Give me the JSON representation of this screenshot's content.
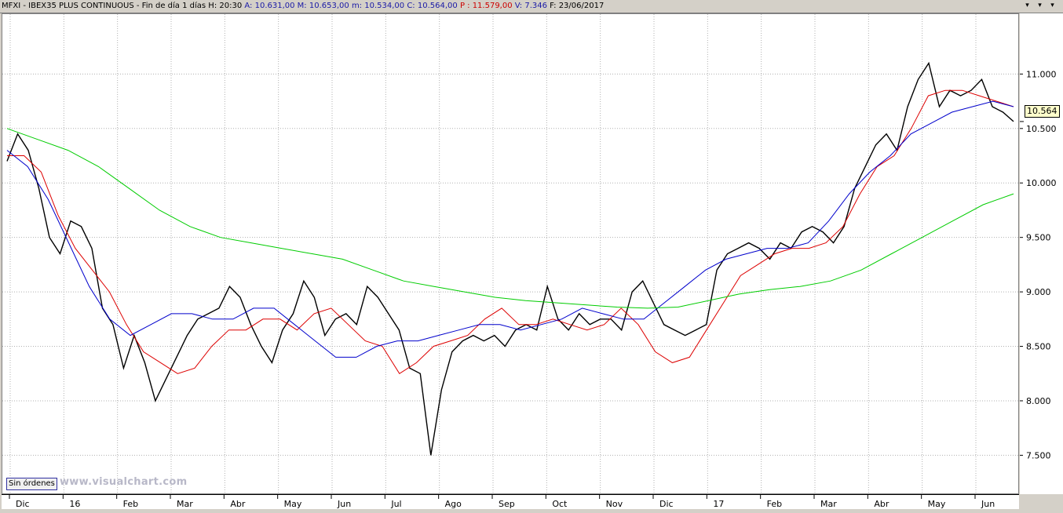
{
  "header": {
    "symbol": "MFXI - IBEX35 PLUS CONTINUOUS - Fin de día 1 días",
    "h": "H: 20:30",
    "a": "A: 10.631,00",
    "m": "M: 10.653,00",
    "mi": "m: 10.534,00",
    "c": "C: 10.564,00",
    "p": "P : 11.579,00",
    "v": "V: 7.346",
    "f": "F: 23/06/2017"
  },
  "window_buttons": [
    "▾",
    "▾",
    "▾"
  ],
  "footer": {
    "orders_label": "Sin órdenes",
    "brand": "www.visualchart.com"
  },
  "last_price": "10.564",
  "colors": {
    "price": "#000000",
    "ma_fast": "#dd0000",
    "ma_mid": "#0000cc",
    "ma_slow": "#00cc00"
  },
  "chart_data": {
    "type": "line",
    "ylim": [
      7150,
      11550
    ],
    "yticks": [
      "7.500",
      "8.000",
      "8.500",
      "9.000",
      "9.500",
      "10.000",
      "10.500",
      "11.000"
    ],
    "ytick_values": [
      7500,
      8000,
      8500,
      9000,
      9500,
      10000,
      10500,
      11000
    ],
    "xticks": [
      "Dic",
      "16",
      "Feb",
      "Mar",
      "Abr",
      "May",
      "Jun",
      "Jul",
      "Ago",
      "Sep",
      "Oct",
      "Nov",
      "Dic",
      "17",
      "Feb",
      "Mar",
      "Abr",
      "May",
      "Jun"
    ],
    "grid": true,
    "series": [
      {
        "values": [
          10200,
          10450,
          10300,
          9950,
          9500,
          9350,
          9650,
          9600,
          9400,
          8850,
          8700,
          8300,
          8600,
          8350,
          8000,
          8200,
          8400,
          8600,
          8750,
          8800,
          8850,
          9050,
          8950,
          8700,
          8500,
          8350,
          8650,
          8800,
          9100,
          8950,
          8600,
          8750,
          8800,
          8700,
          9050,
          8950,
          8800,
          8650,
          8300,
          8250,
          7500,
          8100,
          8450,
          8550,
          8600,
          8550,
          8600,
          8500,
          8650,
          8700,
          8650,
          9050,
          8750,
          8650,
          8800,
          8700,
          8750,
          8750,
          8650,
          9000,
          9100,
          8900,
          8700,
          8650,
          8600,
          8650,
          8700,
          9200,
          9350,
          9400,
          9450,
          9400,
          9300,
          9450,
          9400,
          9550,
          9600,
          9550,
          9450,
          9600,
          9950,
          10150,
          10350,
          10450,
          10300,
          10700,
          10950,
          11100,
          10700,
          10850,
          10800,
          10850,
          10950,
          10700,
          10650,
          10564
        ]
      },
      {
        "values": [
          10250,
          10250,
          10100,
          9700,
          9400,
          9200,
          9000,
          8700,
          8450,
          8350,
          8250,
          8300,
          8500,
          8650,
          8650,
          8750,
          8750,
          8650,
          8800,
          8850,
          8700,
          8550,
          8500,
          8250,
          8350,
          8500,
          8550,
          8600,
          8750,
          8850,
          8700,
          8700,
          8750,
          8700,
          8650,
          8700,
          8850,
          8700,
          8450,
          8350,
          8400,
          8650,
          8900,
          9150,
          9250,
          9350,
          9400,
          9400,
          9450,
          9600,
          9900,
          10150,
          10250,
          10500,
          10800,
          10850,
          10850,
          10800,
          10750,
          10700
        ]
      },
      {
        "values": [
          10300,
          10150,
          9850,
          9450,
          9050,
          8750,
          8600,
          8700,
          8800,
          8800,
          8750,
          8750,
          8850,
          8850,
          8700,
          8550,
          8400,
          8400,
          8500,
          8550,
          8550,
          8600,
          8650,
          8700,
          8700,
          8650,
          8700,
          8750,
          8850,
          8800,
          8750,
          8750,
          8900,
          9050,
          9200,
          9300,
          9350,
          9400,
          9400,
          9450,
          9650,
          9900,
          10100,
          10250,
          10450,
          10550,
          10650,
          10700,
          10750,
          10700
        ]
      },
      {
        "values": [
          10500,
          10400,
          10300,
          10150,
          9950,
          9750,
          9600,
          9500,
          9450,
          9400,
          9350,
          9300,
          9200,
          9100,
          9050,
          9000,
          8950,
          8920,
          8900,
          8880,
          8860,
          8850,
          8860,
          8920,
          8980,
          9020,
          9050,
          9100,
          9200,
          9350,
          9500,
          9650,
          9800,
          9900
        ]
      }
    ]
  }
}
